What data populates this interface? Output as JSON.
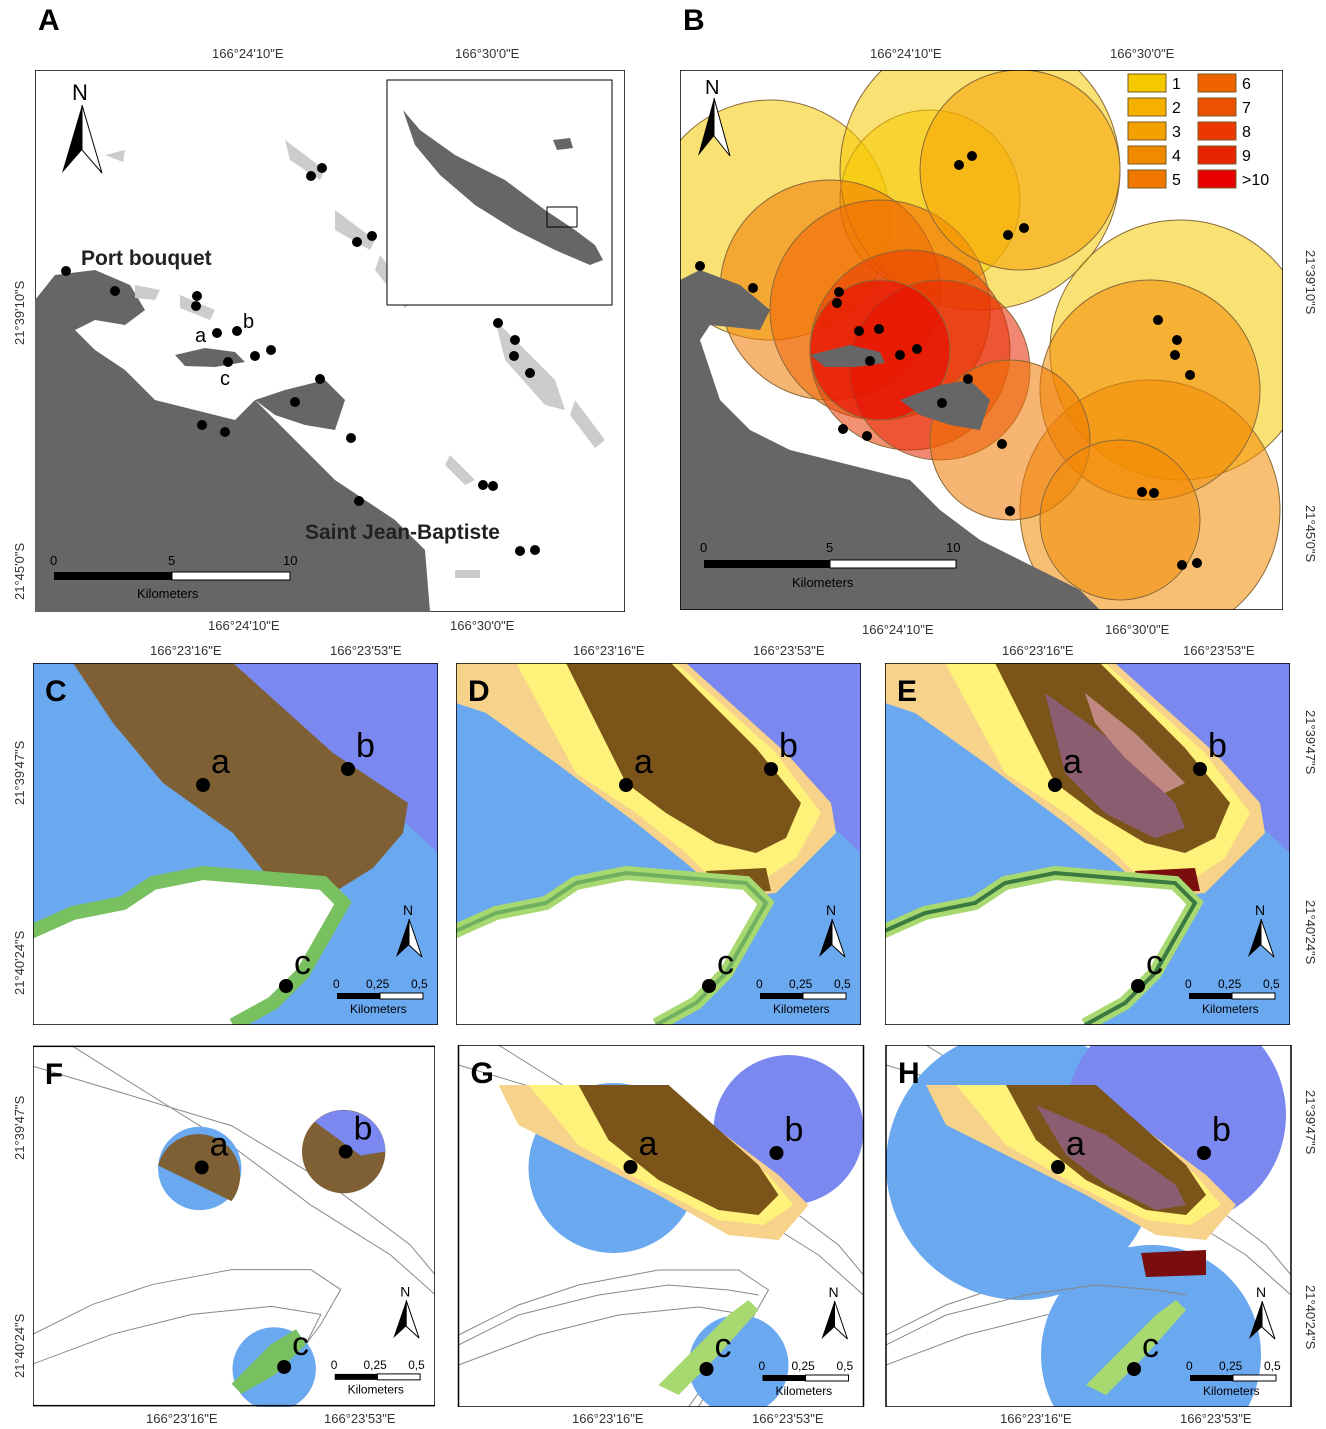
{
  "panels": {
    "A": {
      "label": "A",
      "places": [
        "Port bouquet",
        "Saint Jean-Baptiste"
      ],
      "sites": [
        "a",
        "b",
        "c"
      ],
      "north": "N",
      "scale": {
        "ticks": [
          "0",
          "5",
          "10"
        ],
        "unit": "Kilometers"
      },
      "top_ticks": [
        "166°24'10\"E",
        "166°30'0\"E"
      ],
      "bottom_ticks": [
        "166°24'10\"E",
        "166°30'0\"E"
      ],
      "left_ticks": [
        "21°39'10\"S",
        "21°45'0\"S"
      ]
    },
    "B": {
      "label": "B",
      "north": "N",
      "scale": {
        "ticks": [
          "0",
          "5",
          "10"
        ],
        "unit": "Kilometers"
      },
      "top_ticks": [
        "166°24'10\"E",
        "166°30'0\"E"
      ],
      "bottom_ticks": [
        "166°24'10\"E",
        "166°30'0\"E"
      ],
      "right_ticks": [
        "21°39'10\"S",
        "21°45'0\"S"
      ],
      "legend": [
        {
          "label": "1",
          "color": "#f6c800"
        },
        {
          "label": "2",
          "color": "#f5b000"
        },
        {
          "label": "3",
          "color": "#f4a000"
        },
        {
          "label": "4",
          "color": "#f28a00"
        },
        {
          "label": "5",
          "color": "#f07800"
        },
        {
          "label": "6",
          "color": "#ee6200"
        },
        {
          "label": "7",
          "color": "#ec5000"
        },
        {
          "label": "8",
          "color": "#ea3800"
        },
        {
          "label": "9",
          "color": "#e82400"
        },
        {
          "label": ">10",
          "color": "#e60000"
        }
      ]
    },
    "C": {
      "label": "C"
    },
    "D": {
      "label": "D"
    },
    "E": {
      "label": "E"
    },
    "F": {
      "label": "F"
    },
    "G": {
      "label": "G"
    },
    "H": {
      "label": "H"
    },
    "small": {
      "sites": [
        "a",
        "b",
        "c"
      ],
      "north": "N",
      "scale": {
        "ticks": [
          "0",
          "0,25",
          "0,5"
        ],
        "unit": "Kilometers"
      }
    },
    "row2_top_ticks": [
      "166°23'16\"E",
      "166°23'53\"E"
    ],
    "row3_bottom_ticks": [
      "166°23'16\"E",
      "166°23'53\"E"
    ],
    "lat_ticks": [
      "21°39'47\"S",
      "21°40'24\"S"
    ]
  }
}
